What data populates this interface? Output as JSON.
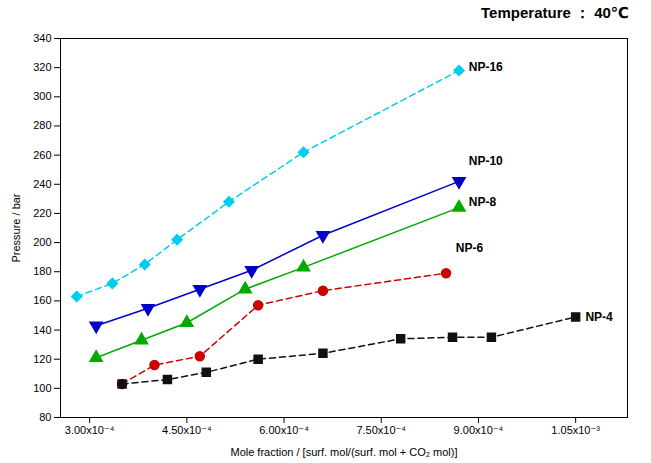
{
  "chart_data": {
    "type": "line",
    "title": "Temperature ： 40℃",
    "x_label": "Mole fraction / [surf. mol/(surf. mol + CO₂ mol)]",
    "y_label": "Pressure / bar",
    "xlim": [
      0.000255,
      0.00113
    ],
    "xticks": [
      {
        "value": 0.0003,
        "label": "3.00x10⁻⁴"
      },
      {
        "value": 0.00045,
        "label": "4.50x10⁻⁴"
      },
      {
        "value": 0.0006,
        "label": "6.00x10⁻⁴"
      },
      {
        "value": 0.00075,
        "label": "7.50x10⁻⁴"
      },
      {
        "value": 0.0009,
        "label": "9.00x10⁻⁴"
      },
      {
        "value": 0.00105,
        "label": "1.05x10⁻³"
      }
    ],
    "ylim": [
      80,
      340
    ],
    "yticks": [
      80,
      100,
      120,
      140,
      160,
      180,
      200,
      220,
      240,
      260,
      280,
      300,
      320,
      340
    ],
    "grid": false,
    "series": [
      {
        "name": "NP-16",
        "color": "#00CCEE",
        "marker": "diamond",
        "line_style": "dashed",
        "x": [
          0.00028,
          0.000335,
          0.000385,
          0.000435,
          0.000515,
          0.00063,
          0.00087
        ],
        "values": [
          163,
          172,
          185,
          202,
          228,
          262,
          318
        ]
      },
      {
        "name": "NP-10",
        "color": "#0000CC",
        "marker": "triangle-down",
        "line_style": "solid",
        "x": [
          0.00031,
          0.00039,
          0.00047,
          0.00055,
          0.00066,
          0.00087
        ],
        "values": [
          143,
          155,
          168,
          181,
          205,
          242
        ]
      },
      {
        "name": "NP-8",
        "color": "#00AA00",
        "marker": "triangle-up",
        "line_style": "solid",
        "x": [
          0.00031,
          0.00038,
          0.00045,
          0.00054,
          0.00063,
          0.00087
        ],
        "values": [
          121,
          133,
          145,
          168,
          183,
          224
        ]
      },
      {
        "name": "NP-6",
        "color": "#CC0000",
        "marker": "circle",
        "line_style": "dashed",
        "x": [
          0.00035,
          0.0004,
          0.00047,
          0.00056,
          0.00066,
          0.00085
        ],
        "values": [
          103,
          116,
          122,
          157,
          167,
          179
        ]
      },
      {
        "name": "NP-4",
        "color": "#111111",
        "marker": "square",
        "line_style": "dashed",
        "x": [
          0.00035,
          0.00042,
          0.00048,
          0.00056,
          0.00066,
          0.00078,
          0.00086,
          0.00092,
          0.00105
        ],
        "values": [
          103,
          106,
          111,
          120,
          124,
          134,
          135,
          135,
          149
        ]
      }
    ],
    "annotations": [
      {
        "text": "NP-16",
        "x": 0.000885,
        "y": 320
      },
      {
        "text": "NP-10",
        "x": 0.000885,
        "y": 256
      },
      {
        "text": "NP-8",
        "x": 0.000885,
        "y": 228
      },
      {
        "text": "NP-6",
        "x": 0.000865,
        "y": 196
      },
      {
        "text": "NP-4",
        "x": 0.001065,
        "y": 149
      }
    ]
  }
}
